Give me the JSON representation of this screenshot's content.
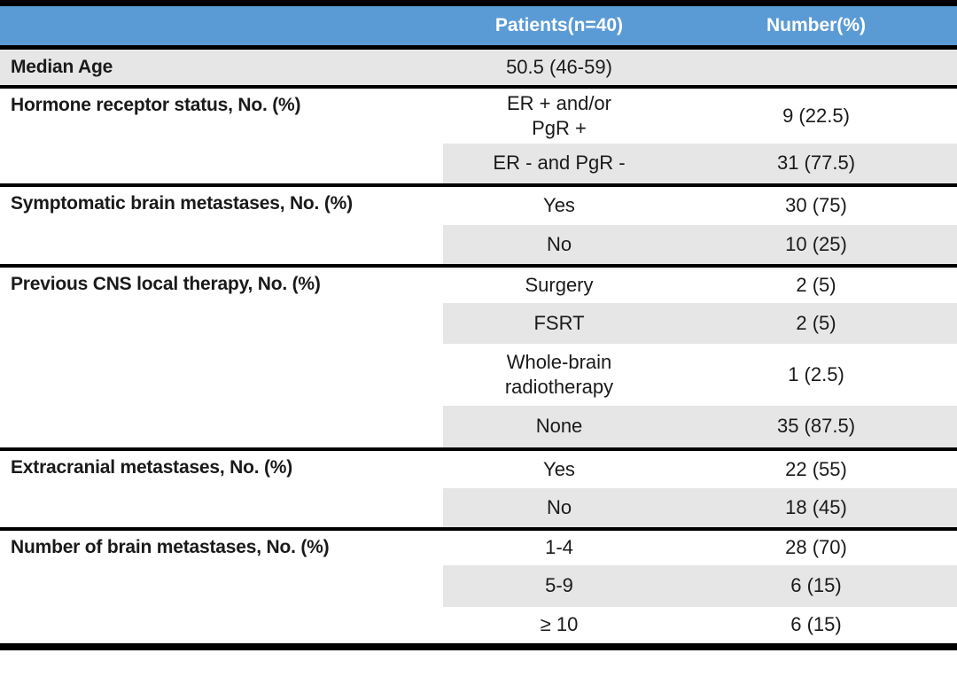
{
  "header": {
    "patients": "Patients(n=40)",
    "number": "Number(%)"
  },
  "colors": {
    "header_bg": "#5B9BD5",
    "header_text": "#FFFFFF",
    "stripe_bg": "#E7E6E6",
    "border": "#000000"
  },
  "sections": [
    {
      "label": "Median Age",
      "rows": [
        {
          "patients": "50.5 (46-59)",
          "number": ""
        }
      ]
    },
    {
      "label": "Hormone receptor status, No. (%)",
      "rows": [
        {
          "patients": "ER + and/or\nPgR +",
          "number": "9 (22.5)"
        },
        {
          "patients": "ER - and PgR -",
          "number": "31 (77.5)"
        }
      ]
    },
    {
      "label": "Symptomatic brain metastases, No. (%)",
      "rows": [
        {
          "patients": "Yes",
          "number": "30 (75)"
        },
        {
          "patients": "No",
          "number": "10 (25)"
        }
      ]
    },
    {
      "label": "Previous CNS local therapy, No. (%)",
      "rows": [
        {
          "patients": "Surgery",
          "number": "2 (5)"
        },
        {
          "patients": "FSRT",
          "number": "2 (5)"
        },
        {
          "patients": "Whole-brain\nradiotherapy",
          "number": "1 (2.5)"
        },
        {
          "patients": "None",
          "number": "35 (87.5)"
        }
      ]
    },
    {
      "label": "Extracranial metastases, No. (%)",
      "rows": [
        {
          "patients": "Yes",
          "number": "22 (55)"
        },
        {
          "patients": "No",
          "number": "18 (45)"
        }
      ]
    },
    {
      "label": "Number of brain metastases, No. (%)",
      "rows": [
        {
          "patients": "1-4",
          "number": "28 (70)"
        },
        {
          "patients": "5-9",
          "number": "6 (15)"
        },
        {
          "patients": "≥ 10",
          "number": "6 (15)"
        }
      ]
    }
  ]
}
